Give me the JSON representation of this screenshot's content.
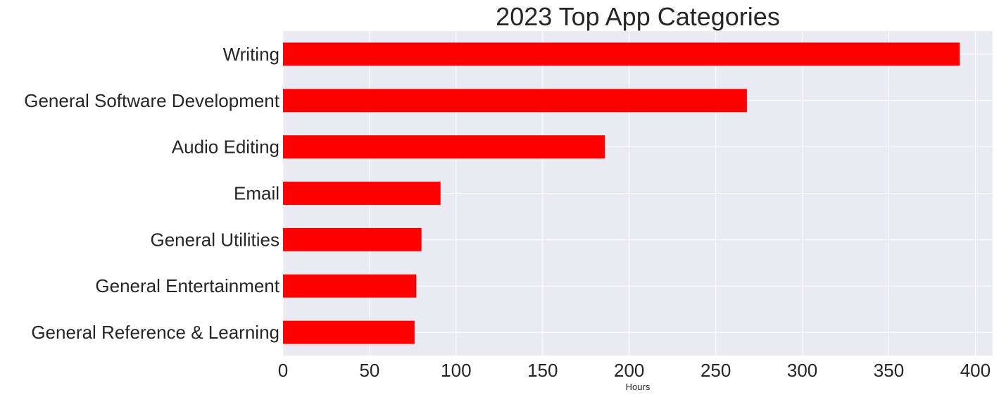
{
  "chart_data": {
    "type": "bar",
    "orientation": "horizontal",
    "title": "2023 Top App Categories",
    "xlabel": "Hours",
    "ylabel": "",
    "categories": [
      "Writing",
      "General Software Development",
      "Audio Editing",
      "Email",
      "General Utilities",
      "General Entertainment",
      "General Reference & Learning"
    ],
    "values": [
      391,
      268,
      186,
      91,
      80,
      77,
      76
    ],
    "xlim": [
      0,
      410
    ],
    "xticks": [
      0,
      50,
      100,
      150,
      200,
      250,
      300,
      350,
      400
    ],
    "bar_color": "#ff0000",
    "background_color": "#eaeaf2",
    "grid_color": "#ffffff",
    "grid": true,
    "legend": false
  }
}
